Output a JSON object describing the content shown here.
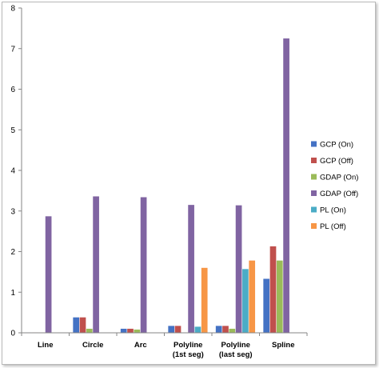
{
  "chart_data": {
    "type": "bar",
    "title": "",
    "xlabel": "",
    "ylabel": "",
    "ylim": [
      0,
      8
    ],
    "yticks": [
      "0",
      "1",
      "2",
      "3",
      "4",
      "5",
      "6",
      "7",
      "8"
    ],
    "grid": false,
    "legend_position": "right",
    "categories": [
      [
        "Line"
      ],
      [
        "Circle"
      ],
      [
        "Arc"
      ],
      [
        "Polyline",
        "(1st seg)"
      ],
      [
        "Polyline",
        "(last seg)"
      ],
      [
        "Spline"
      ]
    ],
    "series": [
      {
        "name": "GCP (On)",
        "color": "#4472C4",
        "values": [
          0.01,
          0.38,
          0.1,
          0.17,
          0.17,
          1.33
        ]
      },
      {
        "name": "GCP (Off)",
        "color": "#C0504D",
        "values": [
          0.01,
          0.38,
          0.1,
          0.17,
          0.17,
          2.13
        ]
      },
      {
        "name": "GDAP (On)",
        "color": "#9BBB59",
        "values": [
          0.01,
          0.1,
          0.08,
          0.0,
          0.1,
          1.78
        ]
      },
      {
        "name": "GDAP (Off)",
        "color": "#8064A2",
        "values": [
          2.87,
          3.36,
          3.34,
          3.15,
          3.14,
          7.25
        ]
      },
      {
        "name": "PL (On)",
        "color": "#4BACC6",
        "values": [
          0.0,
          0.0,
          0.0,
          0.15,
          1.57,
          0.0
        ]
      },
      {
        "name": "PL (Off)",
        "color": "#F79646",
        "values": [
          0.0,
          0.0,
          0.0,
          1.6,
          1.78,
          0.0
        ]
      }
    ]
  }
}
